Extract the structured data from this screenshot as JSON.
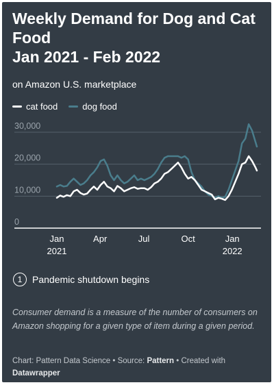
{
  "title_lines": [
    "Weekly Demand for Dog and Cat",
    "Food",
    "Jan 2021 - Feb 2022"
  ],
  "subtitle": "on Amazon U.S. marketplace",
  "legend": [
    {
      "label": "cat food",
      "color": "#ffffff"
    },
    {
      "label": "dog food",
      "color": "#4a7d8c"
    }
  ],
  "annotation": {
    "number": "1",
    "text": "Pandemic shutdown begins"
  },
  "note": "Consumer demand is a measure of the number of consumers on Amazon shopping for a given type of item during a given period.",
  "source": {
    "prefix": "Chart: Pattern Data Science • Source: ",
    "source_bold": "Pattern",
    "middle": " • Created with ",
    "tool_bold": "Datawrapper"
  },
  "chart_data": {
    "type": "line",
    "title": "Weekly Demand for Dog and Cat Food Jan 2021 - Feb 2022",
    "subtitle": "on Amazon U.S. marketplace",
    "xlabel": "",
    "ylabel": "",
    "ylim": [
      0,
      30000
    ],
    "y_ticks": [
      {
        "value": 0,
        "label": "0"
      },
      {
        "value": 10000,
        "label": "10,000"
      },
      {
        "value": 20000,
        "label": "20,000"
      },
      {
        "value": 30000,
        "label": "30,000"
      }
    ],
    "x_ticks": [
      {
        "value": "2021-01-01",
        "label": "Jan",
        "sub": "2021"
      },
      {
        "value": "2021-04-01",
        "label": "Apr",
        "sub": ""
      },
      {
        "value": "2021-07-01",
        "label": "Jul",
        "sub": ""
      },
      {
        "value": "2021-10-01",
        "label": "Oct",
        "sub": ""
      },
      {
        "value": "2022-01-01",
        "label": "Jan",
        "sub": "2022"
      }
    ],
    "xlim": [
      "2021-01-01",
      "2022-02-21"
    ],
    "grid": true,
    "legend_position": "top-left",
    "series": [
      {
        "name": "cat food",
        "color": "#ffffff",
        "points": [
          [
            "2021-01-01",
            9500
          ],
          [
            "2021-01-08",
            10200
          ],
          [
            "2021-01-15",
            9800
          ],
          [
            "2021-01-22",
            10300
          ],
          [
            "2021-01-29",
            10000
          ],
          [
            "2021-02-05",
            11500
          ],
          [
            "2021-02-12",
            12000
          ],
          [
            "2021-02-19",
            11000
          ],
          [
            "2021-02-26",
            10500
          ],
          [
            "2021-03-05",
            10800
          ],
          [
            "2021-03-12",
            12000
          ],
          [
            "2021-03-19",
            13000
          ],
          [
            "2021-03-26",
            12000
          ],
          [
            "2021-04-02",
            13500
          ],
          [
            "2021-04-09",
            14500
          ],
          [
            "2021-04-16",
            13000
          ],
          [
            "2021-04-23",
            12500
          ],
          [
            "2021-04-30",
            11500
          ],
          [
            "2021-05-07",
            13200
          ],
          [
            "2021-05-14",
            12500
          ],
          [
            "2021-05-21",
            11500
          ],
          [
            "2021-05-28",
            12000
          ],
          [
            "2021-06-04",
            12500
          ],
          [
            "2021-06-11",
            12800
          ],
          [
            "2021-06-18",
            12300
          ],
          [
            "2021-06-25",
            12500
          ],
          [
            "2021-07-02",
            12500
          ],
          [
            "2021-07-09",
            12000
          ],
          [
            "2021-07-16",
            12800
          ],
          [
            "2021-07-23",
            14000
          ],
          [
            "2021-07-30",
            14500
          ],
          [
            "2021-08-06",
            15500
          ],
          [
            "2021-08-13",
            17000
          ],
          [
            "2021-08-20",
            17500
          ],
          [
            "2021-08-27",
            18500
          ],
          [
            "2021-09-03",
            19500
          ],
          [
            "2021-09-10",
            20500
          ],
          [
            "2021-09-17",
            19000
          ],
          [
            "2021-09-24",
            17000
          ],
          [
            "2021-10-01",
            15500
          ],
          [
            "2021-10-08",
            16000
          ],
          [
            "2021-10-15",
            15000
          ],
          [
            "2021-10-22",
            13500
          ],
          [
            "2021-10-29",
            12000
          ],
          [
            "2021-11-05",
            11500
          ],
          [
            "2021-11-12",
            11000
          ],
          [
            "2021-11-19",
            10500
          ],
          [
            "2021-11-26",
            9000
          ],
          [
            "2021-12-03",
            9500
          ],
          [
            "2021-12-10",
            9200
          ],
          [
            "2021-12-17",
            8800
          ],
          [
            "2021-12-24",
            10000
          ],
          [
            "2021-12-31",
            12000
          ],
          [
            "2022-01-07",
            14500
          ],
          [
            "2022-01-14",
            17000
          ],
          [
            "2022-01-21",
            20000
          ],
          [
            "2022-01-28",
            20500
          ],
          [
            "2022-02-04",
            22500
          ],
          [
            "2022-02-11",
            21000
          ],
          [
            "2022-02-18",
            19000
          ],
          [
            "2022-02-21",
            18000
          ]
        ]
      },
      {
        "name": "dog food",
        "color": "#4a7d8c",
        "points": [
          [
            "2021-01-01",
            13000
          ],
          [
            "2021-01-08",
            13500
          ],
          [
            "2021-01-15",
            13000
          ],
          [
            "2021-01-22",
            13200
          ],
          [
            "2021-01-29",
            14500
          ],
          [
            "2021-02-05",
            15500
          ],
          [
            "2021-02-12",
            14500
          ],
          [
            "2021-02-19",
            13500
          ],
          [
            "2021-02-26",
            14000
          ],
          [
            "2021-03-05",
            15000
          ],
          [
            "2021-03-12",
            16500
          ],
          [
            "2021-03-19",
            17500
          ],
          [
            "2021-03-26",
            19000
          ],
          [
            "2021-04-02",
            21000
          ],
          [
            "2021-04-09",
            21500
          ],
          [
            "2021-04-16",
            19500
          ],
          [
            "2021-04-23",
            16500
          ],
          [
            "2021-04-30",
            15000
          ],
          [
            "2021-05-07",
            16500
          ],
          [
            "2021-05-14",
            15000
          ],
          [
            "2021-05-21",
            14000
          ],
          [
            "2021-05-28",
            14500
          ],
          [
            "2021-06-04",
            15500
          ],
          [
            "2021-06-11",
            16500
          ],
          [
            "2021-06-18",
            15000
          ],
          [
            "2021-06-25",
            15500
          ],
          [
            "2021-07-02",
            15000
          ],
          [
            "2021-07-09",
            15500
          ],
          [
            "2021-07-16",
            16000
          ],
          [
            "2021-07-23",
            17000
          ],
          [
            "2021-07-30",
            18500
          ],
          [
            "2021-08-06",
            20500
          ],
          [
            "2021-08-13",
            22000
          ],
          [
            "2021-08-20",
            22500
          ],
          [
            "2021-08-27",
            22500
          ],
          [
            "2021-09-03",
            22500
          ],
          [
            "2021-09-10",
            22500
          ],
          [
            "2021-09-17",
            22000
          ],
          [
            "2021-09-24",
            22500
          ],
          [
            "2021-10-01",
            21500
          ],
          [
            "2021-10-08",
            17500
          ],
          [
            "2021-10-15",
            15000
          ],
          [
            "2021-10-22",
            14000
          ],
          [
            "2021-10-29",
            13000
          ],
          [
            "2021-11-05",
            11500
          ],
          [
            "2021-11-12",
            10500
          ],
          [
            "2021-11-19",
            10000
          ],
          [
            "2021-11-26",
            9500
          ],
          [
            "2021-12-03",
            10000
          ],
          [
            "2021-12-10",
            9500
          ],
          [
            "2021-12-17",
            9800
          ],
          [
            "2021-12-24",
            12000
          ],
          [
            "2021-12-31",
            15000
          ],
          [
            "2022-01-07",
            18000
          ],
          [
            "2022-01-14",
            21000
          ],
          [
            "2022-01-21",
            26500
          ],
          [
            "2022-01-28",
            28000
          ],
          [
            "2022-02-04",
            32500
          ],
          [
            "2022-02-11",
            30500
          ],
          [
            "2022-02-18",
            27000
          ],
          [
            "2022-02-21",
            25500
          ]
        ]
      }
    ]
  }
}
